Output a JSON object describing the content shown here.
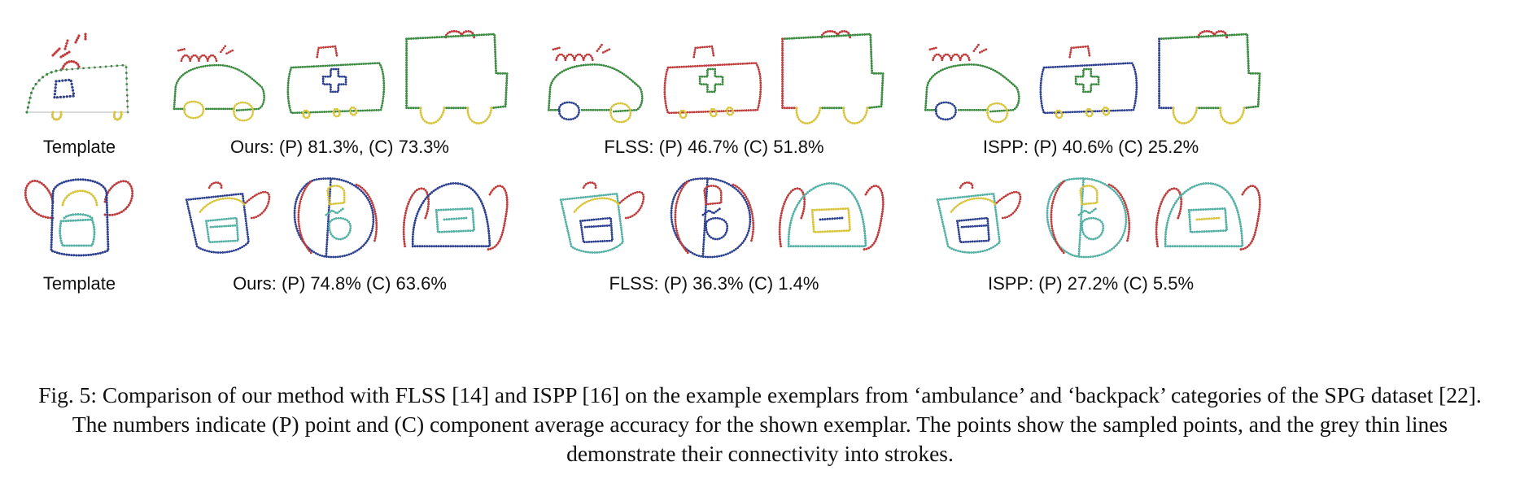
{
  "colors": {
    "green": "#3a8a3f",
    "red": "#c03a3a",
    "blue": "#2b3f8f",
    "yellow": "#d9c53a",
    "teal": "#52b0a4",
    "connector": "#b5b5b5"
  },
  "rows": [
    {
      "category": "ambulance",
      "template_label": "Template",
      "methods": [
        {
          "label": "Ours: (P) 81.3%, (C) 73.3%",
          "P": 81.3,
          "C": 73.3
        },
        {
          "label": "FLSS: (P) 46.7% (C) 51.8%",
          "P": 46.7,
          "C": 51.8
        },
        {
          "label": "ISPP: (P) 40.6% (C) 25.2%",
          "P": 40.6,
          "C": 25.2
        }
      ]
    },
    {
      "category": "backpack",
      "template_label": "Template",
      "methods": [
        {
          "label": "Ours: (P) 74.8% (C) 63.6%",
          "P": 74.8,
          "C": 63.6
        },
        {
          "label": "FLSS: (P) 36.3% (C) 1.4%",
          "P": 36.3,
          "C": 1.4
        },
        {
          "label": "ISPP: (P) 27.2% (C) 5.5%",
          "P": 27.2,
          "C": 5.5
        }
      ]
    }
  ],
  "caption": "Fig. 5: Comparison of our method with FLSS [14] and ISPP [16] on the example exemplars from ‘ambulance’ and ‘backpack’ categories of the SPG dataset [22]. The numbers indicate (P) point and (C) component average accuracy for the shown exemplar. The points show the sampled points, and the grey thin lines demonstrate their connectivity into strokes."
}
